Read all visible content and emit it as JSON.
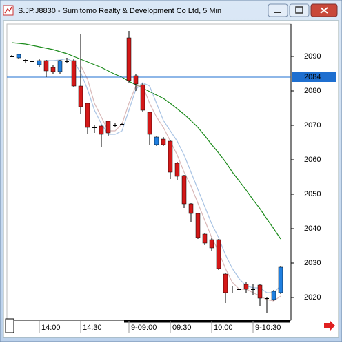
{
  "chart_data": {
    "type": "candlestick",
    "title": "S.JP.J8830 - Sumitomo Realty & Development Co Ltd, 5 Min",
    "categories": [
      null,
      null,
      null,
      null,
      "14:00",
      null,
      null,
      null,
      null,
      null,
      "14:30",
      null,
      null,
      null,
      null,
      null,
      null,
      "9-09:00",
      null,
      null,
      null,
      null,
      null,
      "09:30",
      null,
      null,
      null,
      null,
      null,
      "10:00",
      null,
      null,
      null,
      null,
      null,
      "9-10:30",
      null,
      null,
      null,
      null
    ],
    "open": [
      2090,
      2089.6,
      2089,
      2088.6,
      2087.6,
      2088.8,
      2086.8,
      2085.6,
      2088.6,
      2088.8,
      2081.4,
      2076.4,
      2069.4,
      2069.8,
      2071.2,
      2070,
      2070.4,
      2095.4,
      2084.4,
      2081.8,
      2073.8,
      2064.4,
      2066,
      2065.4,
      2059,
      2055.4,
      2047.2,
      2044.4,
      2038.4,
      2036.8,
      2036.8,
      2026.8,
      2022.6,
      2022.4,
      2023.8,
      2022.4,
      2023.6,
      2019.8,
      2019.4,
      2021.4
    ],
    "high": [
      2090.4,
      2090.8,
      2089.2,
      2088.8,
      2089.2,
      2089,
      2087.6,
      2089,
      2089.6,
      2089.4,
      2096.4,
      2076.6,
      2070,
      2070,
      2071.4,
      2070.8,
      2070.6,
      2097.4,
      2085,
      2082.4,
      2074,
      2067,
      2066.6,
      2065.6,
      2059.4,
      2055.6,
      2047.4,
      2044.6,
      2038.8,
      2037.4,
      2037,
      2027,
      2023.4,
      2022.6,
      2024.4,
      2024,
      2023.8,
      2020,
      2022.2,
      2029
    ],
    "low": [
      2089.8,
      2089.4,
      2088,
      2088.4,
      2087,
      2084,
      2085,
      2085,
      2088,
      2081,
      2073.4,
      2067.4,
      2067.8,
      2063.8,
      2067,
      2069.6,
      2070.2,
      2082.4,
      2080,
      2074,
      2064.4,
      2064,
      2064,
      2054.4,
      2054,
      2046,
      2042,
      2037,
      2035.2,
      2033.4,
      2028,
      2018.4,
      2021.4,
      2022.2,
      2021.4,
      2020.8,
      2017.4,
      2015.4,
      2019,
      2021
    ],
    "close": [
      2090,
      2090.6,
      2089,
      2088.6,
      2088.8,
      2085.8,
      2085.6,
      2088.8,
      2088.6,
      2081.4,
      2075.4,
      2069.4,
      2069.4,
      2067.4,
      2067.8,
      2070,
      2070.4,
      2083,
      2082,
      2074.4,
      2067.4,
      2066.6,
      2064.4,
      2056.4,
      2055.2,
      2047.2,
      2044.4,
      2037.4,
      2035.8,
      2034.4,
      2028.4,
      2021.4,
      2022.6,
      2022.4,
      2022.4,
      2022.4,
      2019.8,
      2019.8,
      2021.8,
      2028.8
    ],
    "up_color": "#1f7fe0",
    "down_color": "#d41818",
    "doji_color": "#000000",
    "series": [
      {
        "color": "#1a8a1a",
        "values": [
          2094,
          2093.8,
          2093.6,
          2093.2,
          2092.8,
          2092.4,
          2092,
          2091.4,
          2090.8,
          2090,
          2089.2,
          2088.4,
          2087.6,
          2086.8,
          2085.8,
          2084.8,
          2084,
          2082.8,
          2081.8,
          2080.8,
          2079.8,
          2078.8,
          2077.8,
          2076.4,
          2074.8,
          2073.2,
          2071.4,
          2069.4,
          2067,
          2064.4,
          2062,
          2059.4,
          2056.4,
          2053.8,
          2051.2,
          2048.4,
          2045.8,
          2042.8,
          2040,
          2037
        ]
      },
      {
        "color": "#a9c4e4",
        "values": [
          null,
          null,
          null,
          null,
          null,
          2088.8,
          2088.8,
          2089,
          2089.4,
          2088.4,
          2085.4,
          2080.4,
          2074.4,
          2070.4,
          2067.4,
          2067.4,
          2068.4,
          2074.4,
          2080.4,
          2082.4,
          2081.4,
          2076.4,
          2071.4,
          2068.4,
          2065.4,
          2061.4,
          2056.4,
          2051.4,
          2046.4,
          2041.4,
          2037.4,
          2032.4,
          2028.4,
          2025.4,
          2023.4,
          2022.8,
          2022.8,
          2021.4,
          2021.4,
          2023.4
        ]
      },
      {
        "color": "#d9b8b8",
        "values": [
          null,
          null,
          null,
          null,
          null,
          null,
          null,
          null,
          null,
          null,
          2087.4,
          2083.4,
          2076.4,
          2072.4,
          2068.4,
          2068.4,
          2070.4,
          2076.4,
          2081.4,
          2081.4,
          2076.4,
          2072.4,
          2069.4,
          2065.4,
          2061.4,
          2056.4,
          2052.4,
          2047.4,
          2042.4,
          2037.4,
          2033.4,
          2028.4,
          2024.4,
          2022.4,
          2022.4,
          2021.4,
          2020.4,
          2019.4,
          2019,
          2020.4
        ]
      }
    ],
    "hline": {
      "value": 2084,
      "color": "#1e6fd0"
    },
    "ylim": [
      2013.4,
      2099.4
    ],
    "yticks": [
      2020,
      2030,
      2040,
      2050,
      2060,
      2070,
      2080,
      2090
    ]
  }
}
